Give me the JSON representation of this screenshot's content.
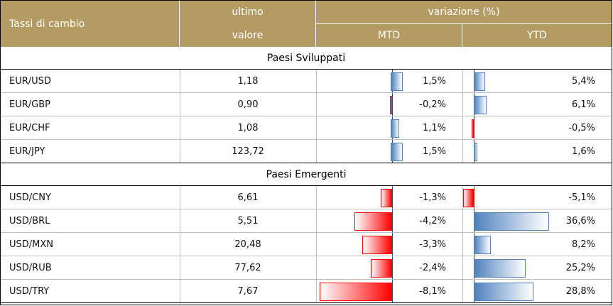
{
  "header": {
    "col_name": "Tassi di cambio",
    "col_value_line1": "ultimo",
    "col_value_line2": "valore",
    "col_change": "variazione (%)",
    "col_mtd": "MTD",
    "col_ytd": "YTD"
  },
  "colors": {
    "header_bg": "#b49b63",
    "positive_bar": "#4f81bd",
    "negative_bar": "#ff0000"
  },
  "sections": [
    {
      "title": "Paesi Sviluppati",
      "rows": [
        {
          "pair": "EUR/USD",
          "value": "1,18",
          "mtd": "1,5%",
          "mtd_num": 1.5,
          "ytd": "5,4%",
          "ytd_num": 5.4
        },
        {
          "pair": "EUR/GBP",
          "value": "0,90",
          "mtd": "-0,2%",
          "mtd_num": -0.2,
          "ytd": "6,1%",
          "ytd_num": 6.1
        },
        {
          "pair": "EUR/CHF",
          "value": "1,08",
          "mtd": "1,1%",
          "mtd_num": 1.1,
          "ytd": "-0,5%",
          "ytd_num": -0.5
        },
        {
          "pair": "EUR/JPY",
          "value": "123,72",
          "mtd": "1,5%",
          "mtd_num": 1.5,
          "ytd": "1,6%",
          "ytd_num": 1.6
        }
      ]
    },
    {
      "title": "Paesi Emergenti",
      "rows": [
        {
          "pair": "USD/CNY",
          "value": "6,61",
          "mtd": "-1,3%",
          "mtd_num": -1.3,
          "ytd": "-5,1%",
          "ytd_num": -5.1
        },
        {
          "pair": "USD/BRL",
          "value": "5,51",
          "mtd": "-4,2%",
          "mtd_num": -4.2,
          "ytd": "36,6%",
          "ytd_num": 36.6
        },
        {
          "pair": "USD/MXN",
          "value": "20,48",
          "mtd": "-3,3%",
          "mtd_num": -3.3,
          "ytd": "8,2%",
          "ytd_num": 8.2
        },
        {
          "pair": "USD/RUB",
          "value": "77,62",
          "mtd": "-2,4%",
          "mtd_num": -2.4,
          "ytd": "25,2%",
          "ytd_num": 25.2
        },
        {
          "pair": "USD/TRY",
          "value": "7,67",
          "mtd": "-8,1%",
          "mtd_num": -8.1,
          "ytd": "28,8%",
          "ytd_num": 28.8
        }
      ]
    }
  ]
}
